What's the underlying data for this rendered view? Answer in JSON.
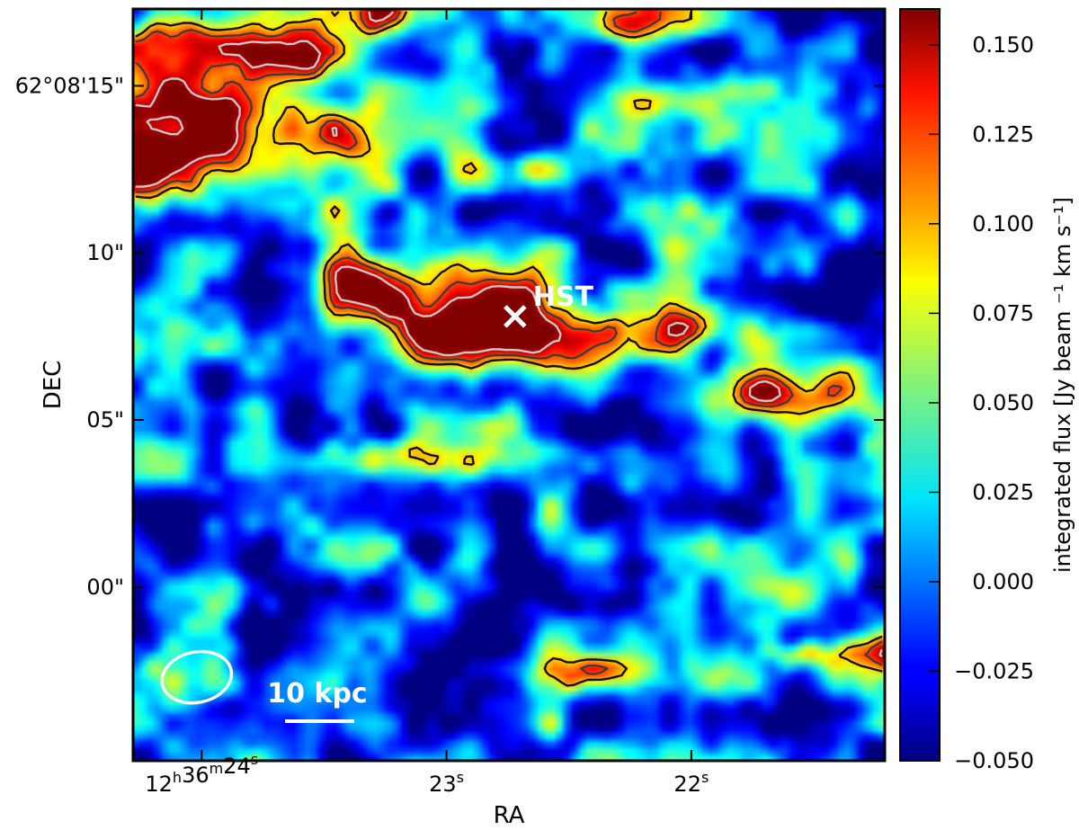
{
  "chart_data": {
    "type": "heatmap",
    "xlabel": "RA",
    "ylabel": "DEC",
    "x_ticks": [
      {
        "ra_s": 24,
        "label_main": "12",
        "h": "h",
        "mid1": "36",
        "m": "m",
        "mid2": "24",
        "s": "s"
      },
      {
        "ra_s": 23,
        "label_main": "23",
        "s": "s"
      },
      {
        "ra_s": 22,
        "label_main": "22",
        "s": "s"
      }
    ],
    "x_range_s": [
      24.28,
      21.21
    ],
    "y_range_arcsec": [
      -5.2,
      17.3
    ],
    "y_ticks": [
      {
        "dec_arcsec": 15,
        "label": "62°08'15\""
      },
      {
        "dec_arcsec": 10,
        "label": "10\""
      },
      {
        "dec_arcsec": 5,
        "label": "05\""
      },
      {
        "dec_arcsec": 0,
        "label": "00\""
      }
    ],
    "colorbar": {
      "label": "integrated flux [Jy beam ⁻¹ km s⁻¹]",
      "min": -0.05,
      "max": 0.16,
      "ticks": [
        0.15,
        0.125,
        0.1,
        0.075,
        0.05,
        0.025,
        0.0,
        -0.025,
        -0.05
      ],
      "tick_labels": [
        "0.150",
        "0.125",
        "0.100",
        "0.075",
        "0.050",
        "0.025",
        "0.000",
        "−0.025",
        "−0.050"
      ],
      "colormap": "jet"
    },
    "background_level": -0.005,
    "sources": [
      {
        "ra_s": 22.82,
        "dec": 7.8,
        "sx": 0.3,
        "sy": 1.1,
        "peak": 0.22
      },
      {
        "ra_s": 24.05,
        "dec": 13.4,
        "sx": 0.5,
        "sy": 1.5,
        "peak": 0.18,
        "angle": -40
      },
      {
        "ra_s": 21.65,
        "dec": 5.7,
        "sx": 0.22,
        "sy": 0.6,
        "peak": 0.15
      },
      {
        "ra_s": 23.35,
        "dec": 9.0,
        "sx": 0.18,
        "sy": 0.6,
        "peak": 0.11
      },
      {
        "ra_s": 23.1,
        "dec": 3.8,
        "sx": 0.4,
        "sy": 0.4,
        "peak": 0.11
      },
      {
        "ra_s": 21.98,
        "dec": 7.7,
        "sx": 0.16,
        "sy": 0.5,
        "peak": 0.11
      },
      {
        "ra_s": 22.38,
        "dec": -2.5,
        "sx": 0.2,
        "sy": 0.4,
        "peak": 0.11
      },
      {
        "ra_s": 24.26,
        "dec": 12.4,
        "sx": 0.15,
        "sy": 0.6,
        "peak": 0.1
      },
      {
        "ra_s": 23.55,
        "dec": 15.8,
        "sx": 0.18,
        "sy": 0.6,
        "peak": 0.1
      },
      {
        "ra_s": 24.12,
        "dec": 16.5,
        "sx": 0.2,
        "sy": 0.7,
        "peak": 0.1,
        "angle": -40
      },
      {
        "ra_s": 23.4,
        "dec": 17.2,
        "sx": 0.3,
        "sy": 0.6,
        "peak": 0.12
      },
      {
        "ra_s": 22.68,
        "dec": 12.5,
        "sx": 0.15,
        "sy": 0.4,
        "peak": 0.1
      },
      {
        "ra_s": 22.13,
        "dec": 14.6,
        "sx": 0.2,
        "sy": 0.4,
        "peak": 0.1
      },
      {
        "ra_s": 22.22,
        "dec": 16.8,
        "sx": 0.15,
        "sy": 0.45,
        "peak": 0.1
      },
      {
        "ra_s": 21.25,
        "dec": -2.0,
        "sx": 0.15,
        "sy": 0.4,
        "peak": 0.1
      },
      {
        "ra_s": 21.55,
        "dec": -2.0,
        "sx": 0.08,
        "sy": 0.25,
        "peak": 0.09
      }
    ],
    "contour_levels": [
      0.09,
      0.12
    ],
    "inner_contour_level": 0.15,
    "marker": {
      "label": "HST",
      "ra_s": 22.72,
      "dec": 8.1
    },
    "scalebar": {
      "label": "10 kpc"
    },
    "beam": {
      "ra_s": 24.02,
      "dec": -2.7
    }
  }
}
